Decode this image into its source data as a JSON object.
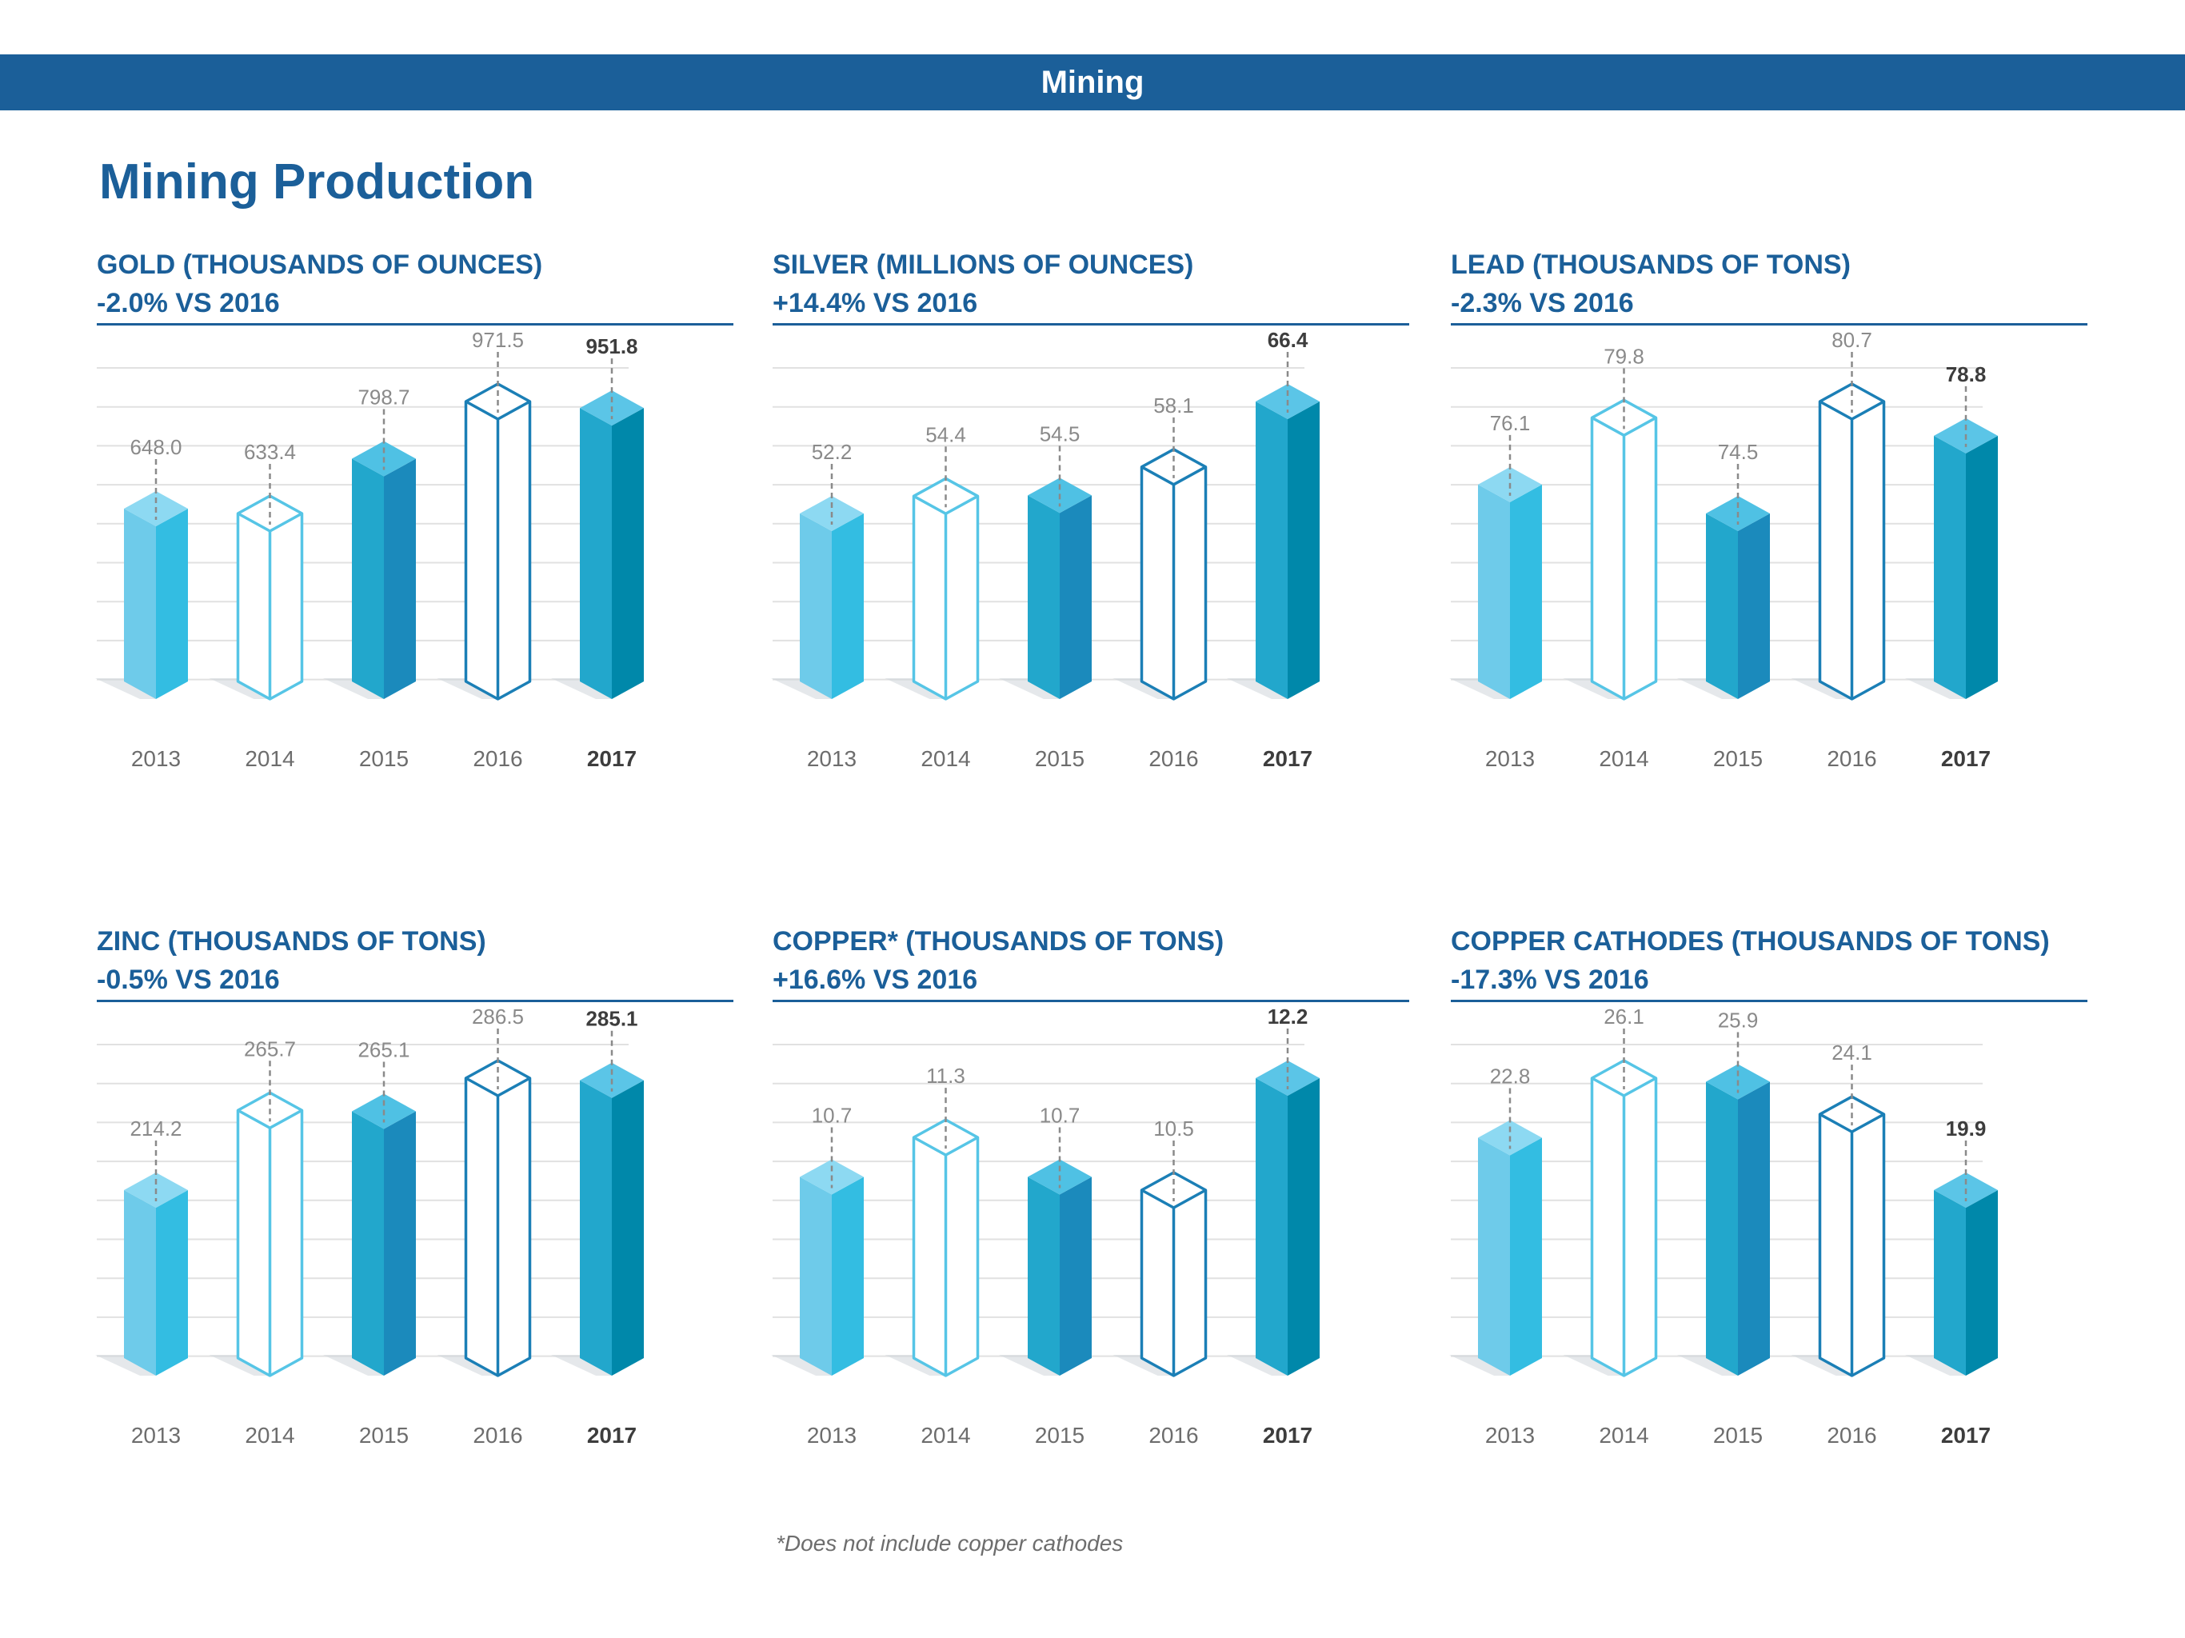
{
  "header": {
    "section": "Mining"
  },
  "page_title": "Mining Production",
  "footnote": "*Does not include copper cathodes",
  "colors": {
    "brand": "#1b5f99",
    "bar_2013": [
      "#6ecbea",
      "#33bde2",
      "#8dd9f2"
    ],
    "bar_2015": [
      "#22a7cc",
      "#1b8abc",
      "#4fc1e4"
    ],
    "bar_2017": [
      "#22a7cc",
      "#0088aa",
      "#5bc5e7"
    ],
    "outline_2014": "#56c5e6",
    "outline_2016": "#1b7fb6",
    "value_label": "#8a8a8a",
    "value_label_latest": "#3d3d3d"
  },
  "chart_data": [
    {
      "type": "bar",
      "title": "GOLD (THOUSANDS OF OUNCES)",
      "change": "-2.0% VS 2016",
      "categories": [
        "2013",
        "2014",
        "2015",
        "2016",
        "2017"
      ],
      "values": [
        648.0,
        633.4,
        798.7,
        971.5,
        951.8
      ],
      "value_labels": [
        "648.0",
        "633.4",
        "798.7",
        "971.5",
        "951.8"
      ],
      "bar_styles": [
        "solid",
        "outline",
        "solid",
        "outline",
        "solid"
      ],
      "highlight_index": 4,
      "grid": true
    },
    {
      "type": "bar",
      "title": "SILVER (MILLIONS OF OUNCES)",
      "change": "+14.4% VS 2016",
      "categories": [
        "2013",
        "2014",
        "2015",
        "2016",
        "2017"
      ],
      "values": [
        52.2,
        54.4,
        54.5,
        58.1,
        66.4
      ],
      "value_labels": [
        "52.2",
        "54.4",
        "54.5",
        "58.1",
        "66.4"
      ],
      "bar_styles": [
        "solid",
        "outline",
        "solid",
        "outline",
        "solid"
      ],
      "highlight_index": 4,
      "grid": true
    },
    {
      "type": "bar",
      "title": "LEAD (THOUSANDS OF TONS)",
      "change": "-2.3% VS 2016",
      "categories": [
        "2013",
        "2014",
        "2015",
        "2016",
        "2017"
      ],
      "values": [
        76.1,
        79.8,
        74.5,
        80.7,
        78.8
      ],
      "value_labels": [
        "76.1",
        "79.8",
        "74.5",
        "80.7",
        "78.8"
      ],
      "bar_styles": [
        "solid",
        "outline",
        "solid",
        "outline",
        "solid"
      ],
      "highlight_index": 4,
      "grid": true
    },
    {
      "type": "bar",
      "title": "ZINC (THOUSANDS OF TONS)",
      "change": "-0.5% VS 2016",
      "categories": [
        "2013",
        "2014",
        "2015",
        "2016",
        "2017"
      ],
      "values": [
        214.2,
        265.7,
        265.1,
        286.5,
        285.1
      ],
      "value_labels": [
        "214.2",
        "265.7",
        "265.1",
        "286.5",
        "285.1"
      ],
      "bar_styles": [
        "solid",
        "outline",
        "solid",
        "outline",
        "solid"
      ],
      "highlight_index": 4,
      "grid": true
    },
    {
      "type": "bar",
      "title": "COPPER* (THOUSANDS OF TONS)",
      "change": "+16.6% VS 2016",
      "categories": [
        "2013",
        "2014",
        "2015",
        "2016",
        "2017"
      ],
      "values": [
        10.7,
        11.3,
        10.7,
        10.5,
        12.2
      ],
      "value_labels": [
        "10.7",
        "11.3",
        "10.7",
        "10.5",
        "12.2"
      ],
      "bar_styles": [
        "solid",
        "outline",
        "solid",
        "outline",
        "solid"
      ],
      "highlight_index": 4,
      "grid": true
    },
    {
      "type": "bar",
      "title": "COPPER CATHODES (THOUSANDS OF TONS)",
      "change": "-17.3% VS 2016",
      "categories": [
        "2013",
        "2014",
        "2015",
        "2016",
        "2017"
      ],
      "values": [
        22.8,
        26.1,
        25.9,
        24.1,
        19.9
      ],
      "value_labels": [
        "22.8",
        "26.1",
        "25.9",
        "24.1",
        "19.9"
      ],
      "bar_styles": [
        "solid",
        "outline",
        "solid",
        "outline",
        "solid"
      ],
      "highlight_index": 4,
      "grid": true
    }
  ]
}
